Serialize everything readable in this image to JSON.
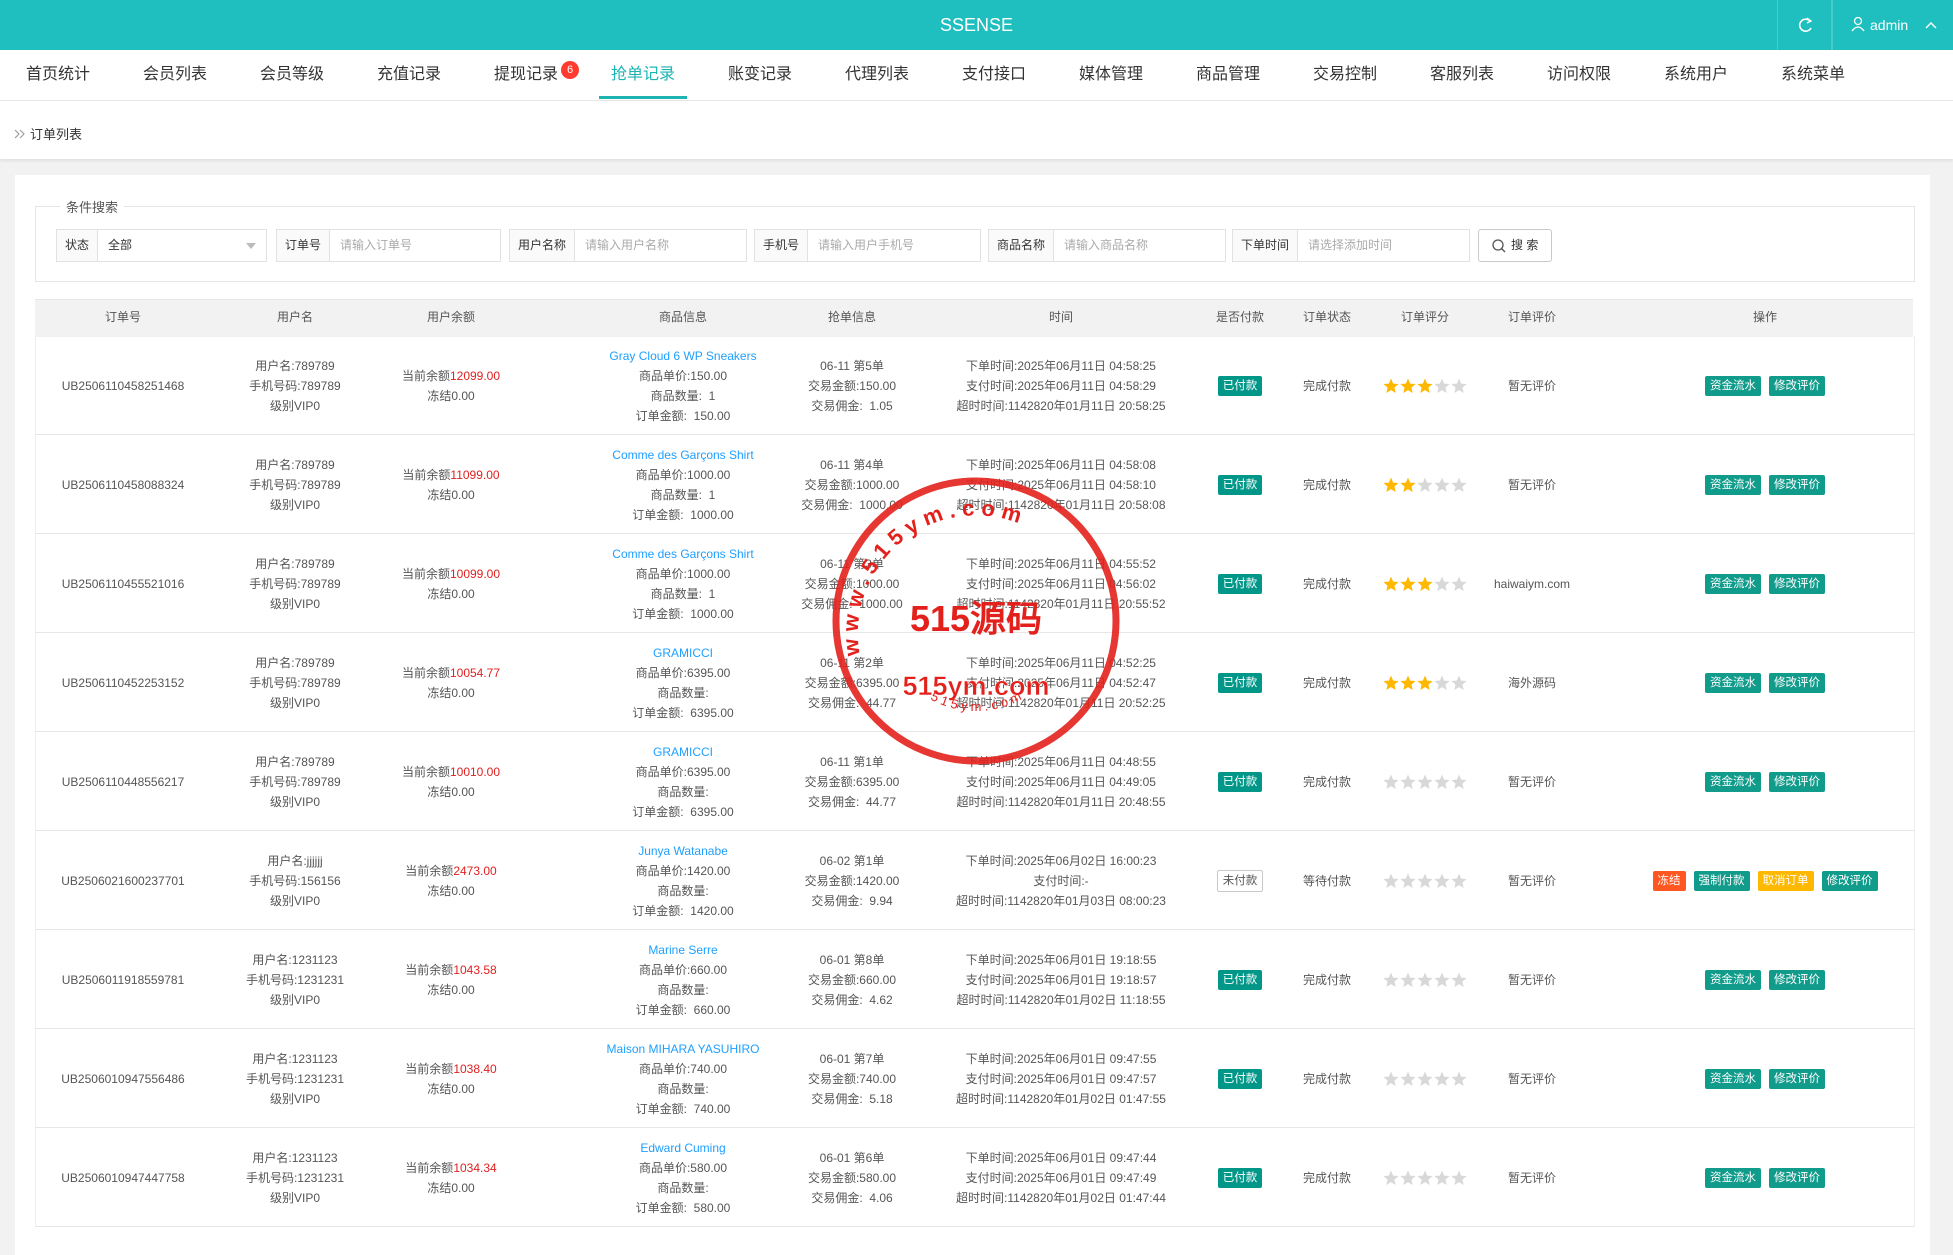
{
  "header": {
    "brand": "SSENSE",
    "user": "admin"
  },
  "nav": {
    "items": [
      {
        "label": "首页统计"
      },
      {
        "label": "会员列表"
      },
      {
        "label": "会员等级"
      },
      {
        "label": "充值记录"
      },
      {
        "label": "提现记录",
        "badge": "6"
      },
      {
        "label": "抢单记录",
        "active": true
      },
      {
        "label": "账变记录"
      },
      {
        "label": "代理列表"
      },
      {
        "label": "支付接口"
      },
      {
        "label": "媒体管理"
      },
      {
        "label": "商品管理"
      },
      {
        "label": "交易控制"
      },
      {
        "label": "客服列表"
      },
      {
        "label": "访问权限"
      },
      {
        "label": "系统用户"
      },
      {
        "label": "系统菜单"
      }
    ]
  },
  "breadcrumb": "订单列表",
  "search": {
    "legend": "条件搜索",
    "button": "搜 索",
    "fields": [
      {
        "label": "状态",
        "value": "全部"
      },
      {
        "label": "订单号",
        "placeholder": "请输入订单号"
      },
      {
        "label": "用户名称",
        "placeholder": "请输入用户名称"
      },
      {
        "label": "手机号",
        "placeholder": "请输入用户手机号"
      },
      {
        "label": "商品名称",
        "placeholder": "请输入商品名称"
      },
      {
        "label": "下单时间",
        "placeholder": "请选择添加时间"
      }
    ]
  },
  "table": {
    "columns": [
      "订单号",
      "用户名",
      "用户余额",
      "商品信息",
      "抢单信息",
      "时间",
      "是否付款",
      "订单状态",
      "订单评分",
      "订单评价",
      "操作"
    ],
    "rows": [
      {
        "order_no": "UB2506110458251468",
        "user": [
          "用户名:789789",
          "手机号码:789789",
          "级别VIP0"
        ],
        "balance_label": "当前余额",
        "balance": "12099.00",
        "frozen": "冻结0.00",
        "product": "Gray Cloud 6 WP Sneakers",
        "product_lines": [
          "商品单价:150.00",
          "商品数量:  1",
          "订单金额:  150.00"
        ],
        "grab": [
          "06-11 第5单",
          "交易金额:150.00",
          "交易佣金:  1.05"
        ],
        "times": [
          "下单时间:2025年06月11日 04:58:25",
          "支付时间:2025年06月11日 04:58:29",
          "超时时间:1142820年01月11日 20:58:25"
        ],
        "paid": true,
        "pay_label": "已付款",
        "status": "完成付款",
        "rating": 3,
        "review": "暂无评价",
        "actions": [
          {
            "label": "资金流水",
            "color": "#119b8b"
          },
          {
            "label": "修改评价",
            "color": "#119b8b"
          }
        ]
      },
      {
        "order_no": "UB2506110458088324",
        "user": [
          "用户名:789789",
          "手机号码:789789",
          "级别VIP0"
        ],
        "balance_label": "当前余额",
        "balance": "11099.00",
        "frozen": "冻结0.00",
        "product": "Comme des Garçons Shirt",
        "product_lines": [
          "商品单价:1000.00",
          "商品数量:  1",
          "订单金额:  1000.00"
        ],
        "grab": [
          "06-11 第4单",
          "交易金额:1000.00",
          "交易佣金:  1000.00"
        ],
        "times": [
          "下单时间:2025年06月11日 04:58:08",
          "支付时间:2025年06月11日 04:58:10",
          "超时时间:1142820年01月11日 20:58:08"
        ],
        "paid": true,
        "pay_label": "已付款",
        "status": "完成付款",
        "rating": 2,
        "review": "暂无评价",
        "actions": [
          {
            "label": "资金流水",
            "color": "#119b8b"
          },
          {
            "label": "修改评价",
            "color": "#119b8b"
          }
        ]
      },
      {
        "order_no": "UB2506110455521016",
        "user": [
          "用户名:789789",
          "手机号码:789789",
          "级别VIP0"
        ],
        "balance_label": "当前余额",
        "balance": "10099.00",
        "frozen": "冻结0.00",
        "product": "Comme des Garçons Shirt",
        "product_lines": [
          "商品单价:1000.00",
          "商品数量:  1",
          "订单金额:  1000.00"
        ],
        "grab": [
          "06-11 第3单",
          "交易金额:1000.00",
          "交易佣金:  1000.00"
        ],
        "times": [
          "下单时间:2025年06月11日 04:55:52",
          "支付时间:2025年06月11日 04:56:02",
          "超时时间:1142820年01月11日 20:55:52"
        ],
        "paid": true,
        "pay_label": "已付款",
        "status": "完成付款",
        "rating": 3,
        "review": "haiwaiym.com",
        "actions": [
          {
            "label": "资金流水",
            "color": "#119b8b"
          },
          {
            "label": "修改评价",
            "color": "#119b8b"
          }
        ]
      },
      {
        "order_no": "UB2506110452253152",
        "user": [
          "用户名:789789",
          "手机号码:789789",
          "级别VIP0"
        ],
        "balance_label": "当前余额",
        "balance": "10054.77",
        "frozen": "冻结0.00",
        "product": "GRAMICCI",
        "product_lines": [
          "商品单价:6395.00",
          "商品数量:",
          "订单金额:  6395.00"
        ],
        "grab": [
          "06-11 第2单",
          "交易金额:6395.00",
          "交易佣金:  44.77"
        ],
        "times": [
          "下单时间:2025年06月11日 04:52:25",
          "支付时间:2025年06月11日 04:52:47",
          "超时时间:1142820年01月11日 20:52:25"
        ],
        "paid": true,
        "pay_label": "已付款",
        "status": "完成付款",
        "rating": 3,
        "review": "海外源码",
        "actions": [
          {
            "label": "资金流水",
            "color": "#119b8b"
          },
          {
            "label": "修改评价",
            "color": "#119b8b"
          }
        ]
      },
      {
        "order_no": "UB2506110448556217",
        "user": [
          "用户名:789789",
          "手机号码:789789",
          "级别VIP0"
        ],
        "balance_label": "当前余额",
        "balance": "10010.00",
        "frozen": "冻结0.00",
        "product": "GRAMICCI",
        "product_lines": [
          "商品单价:6395.00",
          "商品数量:",
          "订单金额:  6395.00"
        ],
        "grab": [
          "06-11 第1单",
          "交易金额:6395.00",
          "交易佣金:  44.77"
        ],
        "times": [
          "下单时间:2025年06月11日 04:48:55",
          "支付时间:2025年06月11日 04:49:05",
          "超时时间:1142820年01月11日 20:48:55"
        ],
        "paid": true,
        "pay_label": "已付款",
        "status": "完成付款",
        "rating": 0,
        "review": "暂无评价",
        "actions": [
          {
            "label": "资金流水",
            "color": "#119b8b"
          },
          {
            "label": "修改评价",
            "color": "#119b8b"
          }
        ]
      },
      {
        "order_no": "UB2506021600237701",
        "user": [
          "用户名:jjjjjj",
          "手机号码:156156",
          "级别VIP0"
        ],
        "balance_label": "当前余额",
        "balance": "2473.00",
        "frozen": "冻结0.00",
        "product": "Junya Watanabe",
        "product_lines": [
          "商品单价:1420.00",
          "商品数量:",
          "订单金额:  1420.00"
        ],
        "grab": [
          "06-02 第1单",
          "交易金额:1420.00",
          "交易佣金:  9.94"
        ],
        "times": [
          "下单时间:2025年06月02日 16:00:23",
          "支付时间:-",
          "超时时间:1142820年01月03日 08:00:23"
        ],
        "paid": false,
        "pay_label": "未付款",
        "status": "等待付款",
        "rating": 0,
        "review": "暂无评价",
        "actions": [
          {
            "label": "冻结",
            "color": "#ff5722"
          },
          {
            "label": "强制付款",
            "color": "#119b8b"
          },
          {
            "label": "取消订单",
            "color": "#ffb800"
          },
          {
            "label": "修改评价",
            "color": "#119b8b"
          }
        ]
      },
      {
        "order_no": "UB2506011918559781",
        "user": [
          "用户名:1231123",
          "手机号码:1231231",
          "级别VIP0"
        ],
        "balance_label": "当前余额",
        "balance": "1043.58",
        "frozen": "冻结0.00",
        "product": "Marine Serre",
        "product_lines": [
          "商品单价:660.00",
          "商品数量:",
          "订单金额:  660.00"
        ],
        "grab": [
          "06-01 第8单",
          "交易金额:660.00",
          "交易佣金:  4.62"
        ],
        "times": [
          "下单时间:2025年06月01日 19:18:55",
          "支付时间:2025年06月01日 19:18:57",
          "超时时间:1142820年01月02日 11:18:55"
        ],
        "paid": true,
        "pay_label": "已付款",
        "status": "完成付款",
        "rating": 0,
        "review": "暂无评价",
        "actions": [
          {
            "label": "资金流水",
            "color": "#119b8b"
          },
          {
            "label": "修改评价",
            "color": "#119b8b"
          }
        ]
      },
      {
        "order_no": "UB2506010947556486",
        "user": [
          "用户名:1231123",
          "手机号码:1231231",
          "级别VIP0"
        ],
        "balance_label": "当前余额",
        "balance": "1038.40",
        "frozen": "冻结0.00",
        "product": "Maison MIHARA YASUHIRO",
        "product_lines": [
          "商品单价:740.00",
          "商品数量:",
          "订单金额:  740.00"
        ],
        "grab": [
          "06-01 第7单",
          "交易金额:740.00",
          "交易佣金:  5.18"
        ],
        "times": [
          "下单时间:2025年06月01日 09:47:55",
          "支付时间:2025年06月01日 09:47:57",
          "超时时间:1142820年01月02日 01:47:55"
        ],
        "paid": true,
        "pay_label": "已付款",
        "status": "完成付款",
        "rating": 0,
        "review": "暂无评价",
        "actions": [
          {
            "label": "资金流水",
            "color": "#119b8b"
          },
          {
            "label": "修改评价",
            "color": "#119b8b"
          }
        ]
      },
      {
        "order_no": "UB2506010947447758",
        "user": [
          "用户名:1231123",
          "手机号码:1231231",
          "级别VIP0"
        ],
        "balance_label": "当前余额",
        "balance": "1034.34",
        "frozen": "冻结0.00",
        "product": "Edward Cuming",
        "product_lines": [
          "商品单价:580.00",
          "商品数量:",
          "订单金额:  580.00"
        ],
        "grab": [
          "06-01 第6单",
          "交易金额:580.00",
          "交易佣金:  4.06"
        ],
        "times": [
          "下单时间:2025年06月01日 09:47:44",
          "支付时间:2025年06月01日 09:47:49",
          "超时时间:1142820年01月02日 01:47:44"
        ],
        "paid": true,
        "pay_label": "已付款",
        "status": "完成付款",
        "rating": 0,
        "review": "暂无评价",
        "actions": [
          {
            "label": "资金流水",
            "color": "#119b8b"
          },
          {
            "label": "修改评价",
            "color": "#119b8b"
          }
        ]
      }
    ]
  },
  "watermark": {
    "main": "515源码",
    "site": "515ym.com",
    "arc": "w w w . 5 1 5 y m . c o m",
    "small": "5 1 5 y m . c o m"
  }
}
